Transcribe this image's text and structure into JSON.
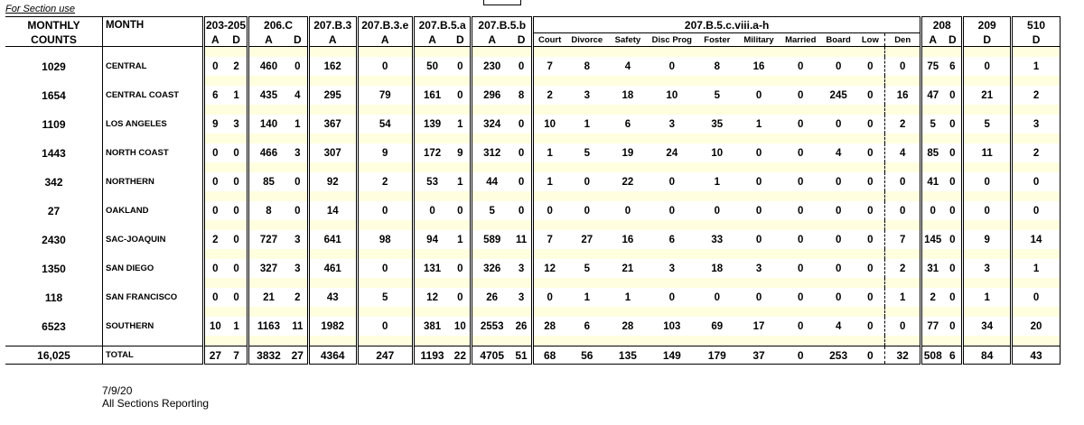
{
  "section_use": "For Section use",
  "headers": {
    "monthly_counts_line1": "MONTHLY",
    "monthly_counts_line2": "COUNTS",
    "month": "MONTH",
    "g1": "203-205",
    "g2": "206.C",
    "g3": "207.B.3",
    "g4": "207.B.3.e",
    "g5": "207.B.5.a",
    "g6": "207.B.5.b",
    "g7": "207.B.5.c.viii.a-h",
    "g8": "208",
    "g9": "209",
    "g10": "510",
    "sub": [
      "A",
      "D",
      "A",
      "D",
      "A",
      "A",
      "A",
      "D",
      "A",
      "D",
      "Court",
      "Divorce",
      "Safety",
      "Disc Prog",
      "Foster",
      "Military",
      "Married",
      "Board",
      "Low",
      "Den",
      "A",
      "D",
      "D",
      "D"
    ]
  },
  "rows": [
    {
      "count": "1029",
      "name": "CENTRAL",
      "v": [
        "0",
        "2",
        "460",
        "0",
        "162",
        "0",
        "50",
        "0",
        "230",
        "0",
        "7",
        "8",
        "4",
        "0",
        "8",
        "16",
        "0",
        "0",
        "0",
        "0",
        "75",
        "6",
        "0",
        "1"
      ]
    },
    {
      "count": "1654",
      "name": "CENTRAL COAST",
      "v": [
        "6",
        "1",
        "435",
        "4",
        "295",
        "79",
        "161",
        "0",
        "296",
        "8",
        "2",
        "3",
        "18",
        "10",
        "5",
        "0",
        "0",
        "245",
        "0",
        "16",
        "47",
        "0",
        "21",
        "2"
      ]
    },
    {
      "count": "1109",
      "name": "LOS ANGELES",
      "v": [
        "9",
        "3",
        "140",
        "1",
        "367",
        "54",
        "139",
        "1",
        "324",
        "0",
        "10",
        "1",
        "6",
        "3",
        "35",
        "1",
        "0",
        "0",
        "0",
        "2",
        "5",
        "0",
        "5",
        "3"
      ]
    },
    {
      "count": "1443",
      "name": "NORTH COAST",
      "v": [
        "0",
        "0",
        "466",
        "3",
        "307",
        "9",
        "172",
        "9",
        "312",
        "0",
        "1",
        "5",
        "19",
        "24",
        "10",
        "0",
        "0",
        "4",
        "0",
        "4",
        "85",
        "0",
        "11",
        "2"
      ]
    },
    {
      "count": "342",
      "name": "NORTHERN",
      "v": [
        "0",
        "0",
        "85",
        "0",
        "92",
        "2",
        "53",
        "1",
        "44",
        "0",
        "1",
        "0",
        "22",
        "0",
        "1",
        "0",
        "0",
        "0",
        "0",
        "0",
        "41",
        "0",
        "0",
        "0"
      ]
    },
    {
      "count": "27",
      "name": "OAKLAND",
      "v": [
        "0",
        "0",
        "8",
        "0",
        "14",
        "0",
        "0",
        "0",
        "5",
        "0",
        "0",
        "0",
        "0",
        "0",
        "0",
        "0",
        "0",
        "0",
        "0",
        "0",
        "0",
        "0",
        "0",
        "0"
      ]
    },
    {
      "count": "2430",
      "name": "SAC-JOAQUIN",
      "v": [
        "2",
        "0",
        "727",
        "3",
        "641",
        "98",
        "94",
        "1",
        "589",
        "11",
        "7",
        "27",
        "16",
        "6",
        "33",
        "0",
        "0",
        "0",
        "0",
        "7",
        "145",
        "0",
        "9",
        "14"
      ]
    },
    {
      "count": "1350",
      "name": "SAN DIEGO",
      "v": [
        "0",
        "0",
        "327",
        "3",
        "461",
        "0",
        "131",
        "0",
        "326",
        "3",
        "12",
        "5",
        "21",
        "3",
        "18",
        "3",
        "0",
        "0",
        "0",
        "2",
        "31",
        "0",
        "3",
        "1"
      ]
    },
    {
      "count": "118",
      "name": "SAN FRANCISCO",
      "v": [
        "0",
        "0",
        "21",
        "2",
        "43",
        "5",
        "12",
        "0",
        "26",
        "3",
        "0",
        "1",
        "1",
        "0",
        "0",
        "0",
        "0",
        "0",
        "0",
        "1",
        "2",
        "0",
        "1",
        "0"
      ]
    },
    {
      "count": "6523",
      "name": "SOUTHERN",
      "v": [
        "10",
        "1",
        "1163",
        "11",
        "1982",
        "0",
        "381",
        "10",
        "2553",
        "26",
        "28",
        "6",
        "28",
        "103",
        "69",
        "17",
        "0",
        "4",
        "0",
        "0",
        "77",
        "0",
        "34",
        "20"
      ]
    }
  ],
  "total": {
    "count": "16,025",
    "name": "TOTAL",
    "v": [
      "27",
      "7",
      "3832",
      "27",
      "4364",
      "247",
      "1193",
      "22",
      "4705",
      "51",
      "68",
      "56",
      "135",
      "149",
      "179",
      "37",
      "0",
      "253",
      "0",
      "32",
      "508",
      "6",
      "84",
      "43"
    ]
  },
  "footer": {
    "date": "7/9/20",
    "note": "All Sections Reporting"
  }
}
